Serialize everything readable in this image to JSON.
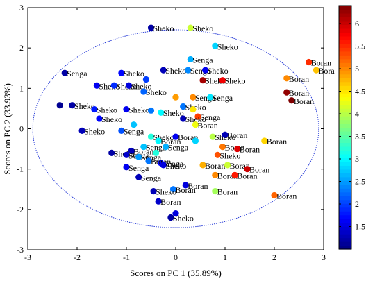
{
  "chart_data": {
    "type": "scatter",
    "title": "",
    "xlabel": "Scores on PC 1 (35.89%)",
    "ylabel": "Scores on PC 2 (33.93%)",
    "xlim": [
      -3,
      3
    ],
    "ylim": [
      -3,
      3
    ],
    "xticks": [
      -3,
      -2,
      -1,
      0,
      1,
      2,
      3
    ],
    "yticks": [
      -3,
      -2,
      -1,
      0,
      1,
      2,
      3
    ],
    "grid": false,
    "confidence_ellipse": {
      "cx": 0.0,
      "cy": 0.0,
      "rx": 2.9,
      "ry": 2.45,
      "style": "dotted",
      "color": "#2b3fd8"
    },
    "colorbar": {
      "min": 1.0,
      "max": 6.4,
      "ticks": [
        1.5,
        2,
        2.5,
        3,
        3.5,
        4,
        4.5,
        5,
        5.5,
        6
      ],
      "tick_labels": [
        "1.5",
        "2",
        "2.5",
        "3",
        "3.5",
        "4",
        "4.5",
        "5",
        "5.5",
        "6"
      ],
      "colormap": "jet"
    },
    "points": [
      {
        "x": -0.5,
        "y": 2.5,
        "c": 1.2,
        "label": "Sheko"
      },
      {
        "x": 0.3,
        "y": 2.5,
        "c": 4.1,
        "label": "Sheko"
      },
      {
        "x": 0.8,
        "y": 2.05,
        "c": 2.8,
        "label": "Sheko"
      },
      {
        "x": 0.3,
        "y": 1.72,
        "c": 2.6,
        "label": "Senga"
      },
      {
        "x": -2.25,
        "y": 1.38,
        "c": 1.2,
        "label": "Senga"
      },
      {
        "x": -1.1,
        "y": 1.38,
        "c": 1.7,
        "label": "Sheko"
      },
      {
        "x": -0.25,
        "y": 1.45,
        "c": 1.3,
        "label": "Sheko"
      },
      {
        "x": 0.25,
        "y": 1.45,
        "c": 2.4,
        "label": "Senga"
      },
      {
        "x": 0.6,
        "y": 1.45,
        "c": 1.6,
        "label": "Sheko"
      },
      {
        "x": 0.55,
        "y": 1.2,
        "c": 6.2,
        "label": "Sheko"
      },
      {
        "x": 0.95,
        "y": 1.2,
        "c": 5.8,
        "label": "Sheko"
      },
      {
        "x": -1.6,
        "y": 1.07,
        "c": 1.6,
        "label": "Sheko"
      },
      {
        "x": -1.25,
        "y": 1.07,
        "c": 1.9,
        "label": "Sheko"
      },
      {
        "x": -0.95,
        "y": 1.07,
        "c": 1.5,
        "label": "Sheko"
      },
      {
        "x": -0.6,
        "y": 1.22,
        "c": 2.0,
        "label": ""
      },
      {
        "x": -0.65,
        "y": 0.92,
        "c": 2.2,
        "label": "Sheko"
      },
      {
        "x": 0.0,
        "y": 0.78,
        "c": 4.9,
        "label": ""
      },
      {
        "x": 0.35,
        "y": 0.78,
        "c": 5.0,
        "label": "Senga"
      },
      {
        "x": 0.7,
        "y": 0.78,
        "c": 2.9,
        "label": "Senga"
      },
      {
        "x": -2.35,
        "y": 0.58,
        "c": 1.1,
        "label": ""
      },
      {
        "x": -2.1,
        "y": 0.58,
        "c": 1.2,
        "label": "Sheko"
      },
      {
        "x": -1.65,
        "y": 0.48,
        "c": 1.8,
        "label": "Sheko"
      },
      {
        "x": -1.0,
        "y": 0.48,
        "c": 1.6,
        "label": "Sheko"
      },
      {
        "x": -0.5,
        "y": 0.45,
        "c": 2.3,
        "label": ""
      },
      {
        "x": -0.3,
        "y": 0.4,
        "c": 3.0,
        "label": "Sheko"
      },
      {
        "x": 0.15,
        "y": 0.55,
        "c": 2.3,
        "label": "Sheko"
      },
      {
        "x": 0.35,
        "y": 0.48,
        "c": 4.5,
        "label": ""
      },
      {
        "x": 0.45,
        "y": 0.3,
        "c": 5.4,
        "label": "Senga"
      },
      {
        "x": 0.15,
        "y": 0.25,
        "c": 1.3,
        "label": "Sheko"
      },
      {
        "x": -1.55,
        "y": 0.25,
        "c": 1.7,
        "label": "Sheko"
      },
      {
        "x": 0.4,
        "y": 0.1,
        "c": 4.3,
        "label": "Boran"
      },
      {
        "x": -0.85,
        "y": 0.1,
        "c": 2.7,
        "label": ""
      },
      {
        "x": -1.9,
        "y": -0.05,
        "c": 1.3,
        "label": "Sheko"
      },
      {
        "x": -1.1,
        "y": -0.05,
        "c": 2.1,
        "label": "Senga"
      },
      {
        "x": -0.5,
        "y": -0.2,
        "c": 3.2,
        "label": "Sheko"
      },
      {
        "x": -0.35,
        "y": -0.3,
        "c": 3.0,
        "label": "Boran"
      },
      {
        "x": 0.0,
        "y": -0.2,
        "c": 1.6,
        "label": "Boran"
      },
      {
        "x": 0.4,
        "y": -0.3,
        "c": 2.8,
        "label": ""
      },
      {
        "x": 0.75,
        "y": -0.2,
        "c": 4.0,
        "label": "Sheko"
      },
      {
        "x": 1.0,
        "y": -0.15,
        "c": 1.3,
        "label": "Boran"
      },
      {
        "x": 1.8,
        "y": -0.3,
        "c": 4.6,
        "label": "Boran"
      },
      {
        "x": -0.65,
        "y": -0.45,
        "c": 2.7,
        "label": "Senga"
      },
      {
        "x": -0.9,
        "y": -0.55,
        "c": 1.3,
        "label": "Boran"
      },
      {
        "x": -0.4,
        "y": -0.6,
        "c": 3.2,
        "label": ""
      },
      {
        "x": -0.2,
        "y": -0.45,
        "c": 2.6,
        "label": "Senga"
      },
      {
        "x": 0.95,
        "y": -0.45,
        "c": 5.1,
        "label": "Boran"
      },
      {
        "x": 1.25,
        "y": -0.5,
        "c": 5.9,
        "label": "Boran"
      },
      {
        "x": -1.3,
        "y": -0.6,
        "c": 1.2,
        "label": "Sheko"
      },
      {
        "x": -1.0,
        "y": -0.65,
        "c": 1.4,
        "label": "Senga"
      },
      {
        "x": -0.75,
        "y": -0.7,
        "c": 2.5,
        "label": "Senga"
      },
      {
        "x": 0.85,
        "y": -0.65,
        "c": 5.3,
        "label": "Sheko"
      },
      {
        "x": -0.3,
        "y": -0.85,
        "c": 1.7,
        "label": "Senga"
      },
      {
        "x": -0.55,
        "y": -0.8,
        "c": 2.3,
        "label": "Boran"
      },
      {
        "x": -0.25,
        "y": -0.9,
        "c": 1.5,
        "label": "Sheko"
      },
      {
        "x": 0.55,
        "y": -0.9,
        "c": 4.8,
        "label": "Boran"
      },
      {
        "x": 1.05,
        "y": -0.9,
        "c": 4.1,
        "label": "Boran"
      },
      {
        "x": 1.45,
        "y": -1.0,
        "c": 6.0,
        "label": "Boran"
      },
      {
        "x": -1.0,
        "y": -0.95,
        "c": 1.6,
        "label": "Senga"
      },
      {
        "x": 0.8,
        "y": -1.15,
        "c": 5.0,
        "label": "Boran"
      },
      {
        "x": 1.2,
        "y": -1.15,
        "c": 5.6,
        "label": "Boran"
      },
      {
        "x": -0.75,
        "y": -1.2,
        "c": 1.3,
        "label": "Senga"
      },
      {
        "x": 0.2,
        "y": -1.4,
        "c": 1.5,
        "label": "Boran"
      },
      {
        "x": -0.05,
        "y": -1.5,
        "c": 2.3,
        "label": "Boran"
      },
      {
        "x": 0.8,
        "y": -1.55,
        "c": 3.9,
        "label": "Boran"
      },
      {
        "x": 2.0,
        "y": -1.65,
        "c": 5.2,
        "label": "Boran"
      },
      {
        "x": -0.45,
        "y": -1.55,
        "c": 1.3,
        "label": "Sheko"
      },
      {
        "x": -0.35,
        "y": -1.8,
        "c": 1.4,
        "label": "Boran"
      },
      {
        "x": 0.0,
        "y": -2.1,
        "c": 1.5,
        "label": ""
      },
      {
        "x": -0.1,
        "y": -2.2,
        "c": 1.2,
        "label": "Sheko"
      },
      {
        "x": 2.7,
        "y": 1.65,
        "c": 5.5,
        "label": "Boran"
      },
      {
        "x": 2.85,
        "y": 1.45,
        "c": 4.7,
        "label": "Bora"
      },
      {
        "x": 2.25,
        "y": 1.25,
        "c": 5.0,
        "label": "Boran"
      },
      {
        "x": 2.25,
        "y": 0.9,
        "c": 6.3,
        "label": "Boran"
      },
      {
        "x": 2.35,
        "y": 0.7,
        "c": 6.4,
        "label": "Boran"
      }
    ]
  }
}
